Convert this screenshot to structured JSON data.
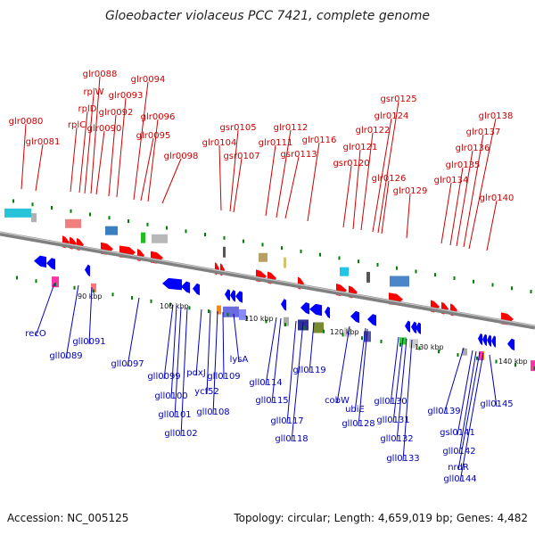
{
  "title": "Gloeobacter violaceus PCC 7421, complete genome",
  "footer": {
    "accession": "Accession: NC_005125",
    "summary": "Topology: circular; Length: 4,659,019 bp; Genes: 4,482"
  },
  "colors": {
    "forward_label": "#cc0000",
    "reverse_label": "#0000bb",
    "backbone": "#808080",
    "forward_arrow": "#ff0000",
    "reverse_arrow": "#0000ff",
    "tick": "#008000"
  },
  "scale_ticks": [
    "90 kbp",
    "100 kbp",
    "110 kbp",
    "120 kbp",
    "130 kbp",
    "140 kbp"
  ],
  "forward_genes": [
    "glr0080",
    "glr0081",
    "rplC",
    "rplD",
    "rplW",
    "glr0088",
    "glr0090",
    "glr0092",
    "glr0093",
    "glr0094",
    "glr0095",
    "glr0096",
    "glr0098",
    "glr0104",
    "gsr0105",
    "gsr0107",
    "glr0111",
    "glr0112",
    "gsr0113",
    "glr0116",
    "gsr0120",
    "glr0121",
    "glr0122",
    "glr0124",
    "gsr0125",
    "glr0126",
    "glr0129",
    "glr0134",
    "glr0135",
    "glr0136",
    "glr0137",
    "glr0138",
    "glr0140"
  ],
  "reverse_genes": [
    "recO",
    "gll0089",
    "gll0091",
    "gll0097",
    "gll0099",
    "gll0100",
    "gll0101",
    "gll0102",
    "pdxJ",
    "ycf52",
    "gll0108",
    "gll0109",
    "lysA",
    "gll0114",
    "gll0115",
    "gll0117",
    "gll0118",
    "gll0119",
    "cobW",
    "ubiE",
    "gll0128",
    "gll0130",
    "gll0131",
    "gll0132",
    "gll0133",
    "gll0139",
    "gsl0141",
    "gll0142",
    "nrdR",
    "gll0144",
    "gll0145"
  ]
}
